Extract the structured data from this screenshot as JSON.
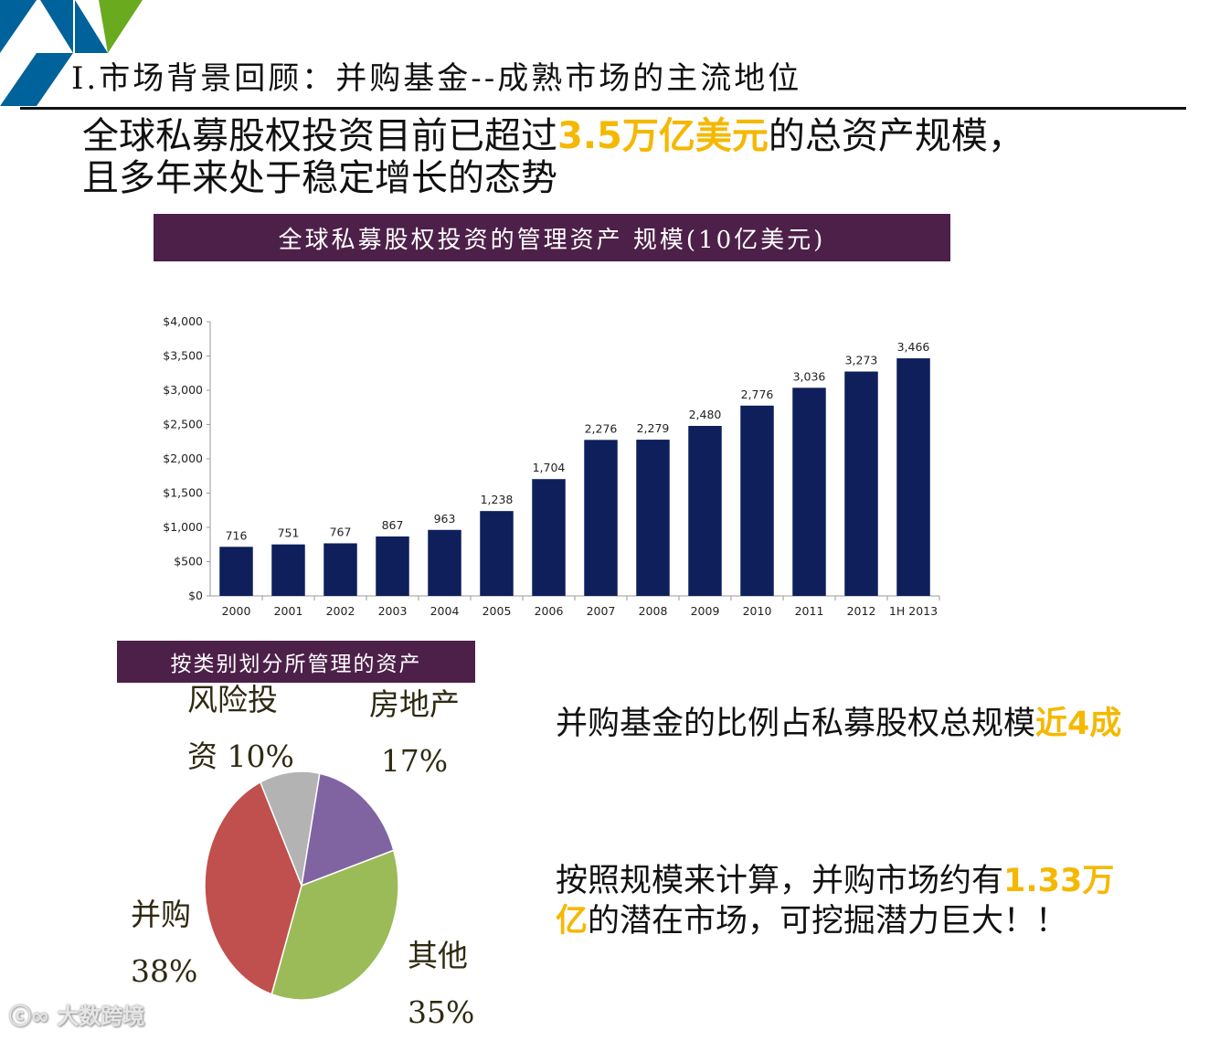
{
  "header": {
    "title": "I.市场背景回顾：并购基金--成熟市场的主流地位",
    "accent_color": "#00629b",
    "deco_color": "#6aaa1e"
  },
  "headline": {
    "line1_prefix": "全球私募股权投资目前已超过",
    "line1_highlight": "3.5万亿美元",
    "line1_suffix": "的总资产规模，",
    "line2": "且多年来处于稳定增长的态势",
    "highlight_color": "#f5b800"
  },
  "aum_banner": "全球私募股权投资的管理资产 规模(10亿美元)",
  "category_banner": "按类别划分所管理的资产",
  "banner_color": "#4d2049",
  "chart_data": [
    {
      "type": "bar",
      "title": "全球私募股权投资的管理资产 规模(10亿美元)",
      "categories": [
        "2000",
        "2001",
        "2002",
        "2003",
        "2004",
        "2005",
        "2006",
        "2007",
        "2008",
        "2009",
        "2010",
        "2011",
        "2012",
        "1H 2013"
      ],
      "values": [
        716,
        751,
        767,
        867,
        963,
        1238,
        1704,
        2276,
        2279,
        2480,
        2776,
        3036,
        3273,
        3466
      ],
      "value_labels": [
        "716",
        "751",
        "767",
        "867",
        "963",
        "1,238",
        "1,704",
        "2,276",
        "2,279",
        "2,480",
        "2,776",
        "3,036",
        "3,273",
        "3,466"
      ],
      "ylim": [
        0,
        4000
      ],
      "yticks": [
        0,
        500,
        1000,
        1500,
        2000,
        2500,
        3000,
        3500,
        4000
      ],
      "ytick_labels": [
        "$0",
        "$500",
        "$1,000",
        "$1,500",
        "$2,000",
        "$2,500",
        "$3,000",
        "$3,500",
        "$4,000"
      ],
      "xlabel": "",
      "ylabel": "",
      "grid": false,
      "bar_color": "#0e1f5b"
    },
    {
      "type": "pie",
      "title": "按类别划分所管理的资产",
      "slices": [
        {
          "name": "风险投资",
          "value": 10,
          "color": "#b3b3b3"
        },
        {
          "name": "房地产",
          "value": 17,
          "color": "#8064a2"
        },
        {
          "name": "其他",
          "value": 35,
          "color": "#9bbb59"
        },
        {
          "name": "并购",
          "value": 38,
          "color": "#c0504d"
        }
      ]
    }
  ],
  "pie_labels": {
    "vc_l1": "风险投",
    "vc_l2": "资 10%",
    "re_l1": "房地产",
    "re_l2": "17%",
    "bo_l1": "并购",
    "bo_l2": "38%",
    "other_l1": "其他",
    "other_l2": "35%"
  },
  "points": {
    "p1_text": "并购基金的比例占私募股权总规模",
    "p1_highlight": "近4成",
    "p2_text": "按照规模来计算，并购市场约有",
    "p2_highlight": "1.33万亿",
    "p2_suffix": "的潜在市场，可挖掘潜力巨大！！"
  },
  "watermark": "大数跨境"
}
